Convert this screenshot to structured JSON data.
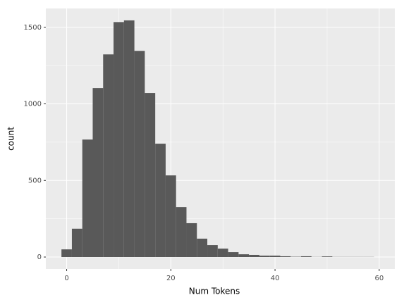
{
  "chart_data": {
    "type": "histogram",
    "xlabel": "Num Tokens",
    "ylabel": "count",
    "bins": [
      -1,
      1,
      3,
      5,
      7,
      9,
      11,
      13,
      15,
      17,
      19,
      21,
      23,
      25,
      27,
      29,
      31,
      33,
      35,
      37,
      39,
      41,
      43,
      45,
      47,
      49,
      51,
      53,
      55,
      57,
      59
    ],
    "values": [
      50,
      185,
      767,
      1103,
      1323,
      1534,
      1545,
      1346,
      1071,
      740,
      533,
      326,
      221,
      120,
      78,
      55,
      32,
      18,
      14,
      9,
      9,
      5,
      2,
      5,
      1,
      4,
      1,
      1,
      1,
      1
    ],
    "color": "#595959",
    "xlim": [
      -4,
      63
    ],
    "xticks": [
      0,
      20,
      40,
      60
    ],
    "xminor": [
      10,
      30,
      50
    ],
    "ylim": [
      -78,
      1623
    ],
    "yticks": [
      0,
      500,
      1000,
      1500
    ],
    "yminor": [
      250,
      750,
      1250
    ],
    "grid": true
  }
}
